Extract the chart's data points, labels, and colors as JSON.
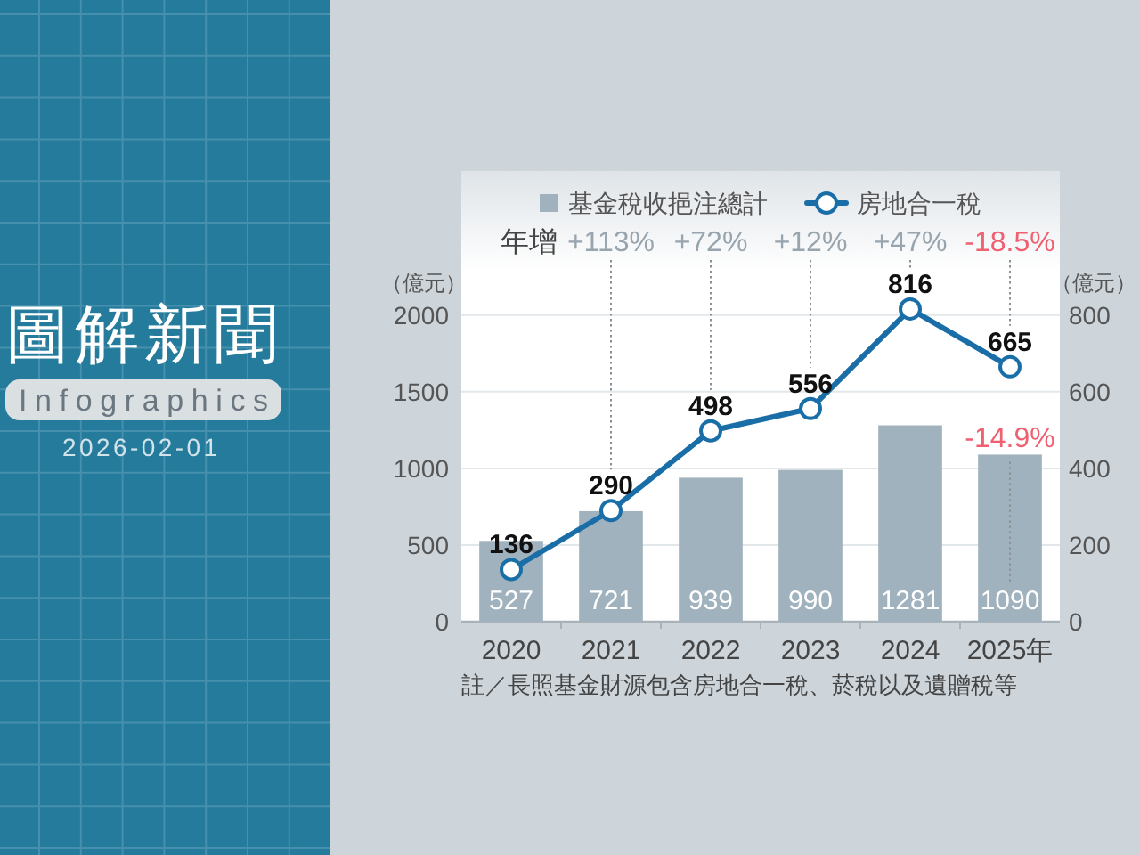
{
  "chart_data": {
    "type": "bar",
    "title": "圖解新聞",
    "subtitle": "Infographics",
    "ylabel": "（億元）",
    "y2label": "（億元）",
    "categories": [
      "2020",
      "2021",
      "2022",
      "2023",
      "2024",
      "2025年"
    ],
    "series": [
      {
        "name": "基金稅收挹注總計",
        "color": "#a0b2bd",
        "values": [
          527,
          721,
          939,
          990,
          1281,
          1090
        ]
      },
      {
        "name": "房地合一稅",
        "type": "line",
        "axis": "y2",
        "color": "#1a6ea8",
        "marker": "circle",
        "values": [
          136,
          290,
          498,
          556,
          816,
          665
        ]
      }
    ],
    "ylim": [
      0,
      2940
    ],
    "yticks": [
      0,
      500,
      1000,
      1500,
      2000
    ],
    "y2lim": [
      0,
      1176
    ],
    "y2ticks": [
      0,
      200,
      400,
      600,
      800
    ],
    "grid": "y",
    "legend": "top",
    "data_labels": true,
    "annotations": [
      "年增",
      "+113%",
      "+72%",
      "+12%",
      "+47%",
      "-18.5%",
      {
        "text": "-14.9%",
        "x": "2025年",
        "y": 1090
      },
      "註／長照基金財源包含房地合一稅、菸稅以及遺贈稅等",
      "2026-02-01"
    ]
  }
}
